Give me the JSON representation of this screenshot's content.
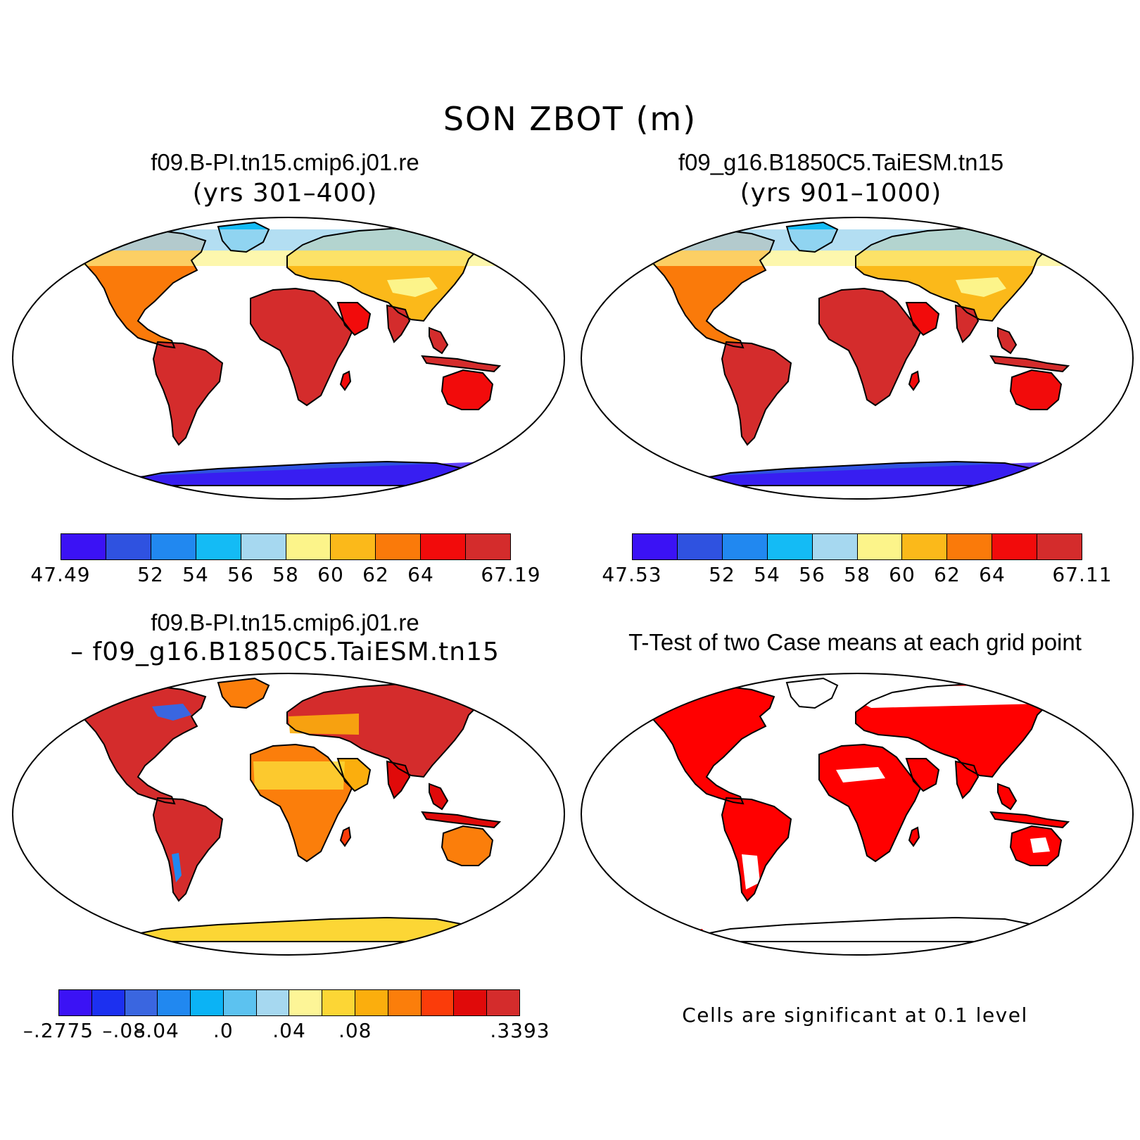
{
  "title": "SON ZBOT (m)",
  "colors": {
    "ocean": "#ffffff",
    "outline": "#000000",
    "significant": "#ff0000"
  },
  "panels": {
    "case1": {
      "name": "f09.B-PI.tn15.cmip6.j01.re",
      "years": "(yrs 301–400)",
      "colorbar": {
        "colors": [
          "#3b12f5",
          "#2f52e0",
          "#2188f0",
          "#14bbf5",
          "#a6d8f0",
          "#fcf48a",
          "#fbb91a",
          "#fa7a0a",
          "#f20b0b",
          "#d42c2c"
        ],
        "labels": [
          "47.49",
          "",
          "52",
          "54",
          "56",
          "58",
          "60",
          "62",
          "64",
          "",
          "67.19"
        ]
      }
    },
    "case2": {
      "name": "f09_g16.B1850C5.TaiESM.tn15",
      "years": "(yrs 901–1000)",
      "colorbar": {
        "colors": [
          "#3b12f5",
          "#2f52e0",
          "#2188f0",
          "#14bbf5",
          "#a6d8f0",
          "#fcf48a",
          "#fbb91a",
          "#fa7a0a",
          "#f20b0b",
          "#d42c2c"
        ],
        "labels": [
          "47.53",
          "",
          "52",
          "54",
          "56",
          "58",
          "60",
          "62",
          "64",
          "",
          "67.11"
        ]
      }
    },
    "diff": {
      "name": "f09.B-PI.tn15.cmip6.j01.re",
      "minus": "– f09_g16.B1850C5.TaiESM.tn15",
      "colorbar": {
        "colors": [
          "#3b12f5",
          "#1c30f0",
          "#3a66e0",
          "#2188f0",
          "#0bb3f5",
          "#5cc2f0",
          "#a6d8f0",
          "#fdf597",
          "#fcd635",
          "#fbae0d",
          "#fb7e0b",
          "#fb3c0a",
          "#e00a0a",
          "#d42c2c"
        ],
        "labels": [
          "–.2775",
          "",
          "–.08",
          "–.04",
          "",
          ".0",
          "",
          ".04",
          "",
          ".08",
          "",
          "",
          ".3393"
        ]
      }
    },
    "ttest": {
      "name": "T-Test of two Case means at each grid point",
      "note": "Cells are significant at 0.1 level"
    }
  }
}
